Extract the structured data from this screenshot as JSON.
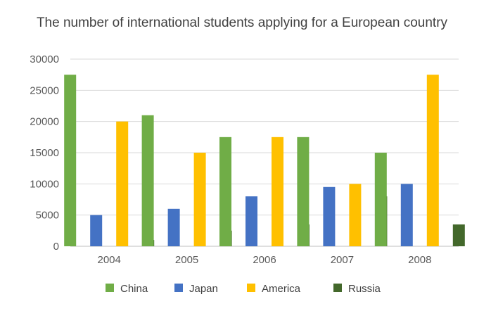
{
  "chart_data": {
    "type": "bar",
    "title": "The number of international students applying for a European country",
    "xlabel": "",
    "ylabel": "",
    "categories": [
      "2004",
      "2005",
      "2006",
      "2007",
      "2008"
    ],
    "ylim": [
      0,
      30000
    ],
    "yticks": [
      0,
      5000,
      10000,
      15000,
      20000,
      25000,
      30000
    ],
    "grid": true,
    "legend_position": "bottom",
    "series": [
      {
        "name": "China",
        "color": "#70ad47",
        "values": [
          27500,
          21000,
          17500,
          17500,
          15000
        ]
      },
      {
        "name": "Japan",
        "color": "#4472c4",
        "values": [
          5000,
          6000,
          8000,
          9500,
          10000
        ]
      },
      {
        "name": "America",
        "color": "#ffc000",
        "values": [
          20000,
          15000,
          17500,
          10000,
          27500
        ]
      },
      {
        "name": "Russia",
        "color": "#43682b",
        "values": [
          1000,
          2500,
          3500,
          8000,
          3500
        ]
      }
    ]
  }
}
